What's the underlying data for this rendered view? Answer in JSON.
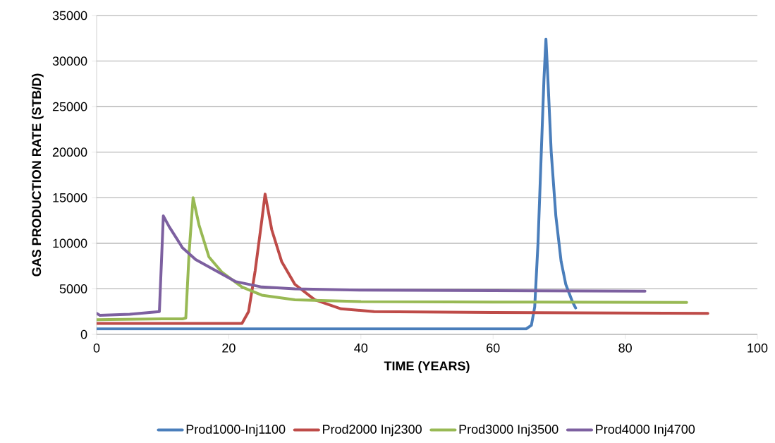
{
  "chart_data": {
    "type": "line",
    "xlabel": "TIME (YEARS)",
    "ylabel": "GAS PRODUCTION RATE (STB/D)",
    "xlim": [
      0,
      100
    ],
    "xticks": [
      0,
      20,
      40,
      60,
      80,
      100
    ],
    "ylim": [
      0,
      35000
    ],
    "yticks": [
      0,
      5000,
      10000,
      15000,
      20000,
      25000,
      30000,
      35000
    ],
    "grid": "y",
    "legend": "bottom",
    "marker": "none",
    "line_style": "solid",
    "series": [
      {
        "name": "Prod1000-Inj1100",
        "color": "#4a7ebb",
        "x": [
          0,
          65,
          65.8,
          66.3,
          66.8,
          67.3,
          67.7,
          68,
          68.3,
          68.8,
          69.5,
          70.3,
          71,
          72,
          72.5
        ],
        "values": [
          600,
          600,
          1000,
          3000,
          10000,
          20000,
          28000,
          32400,
          28000,
          20000,
          13000,
          8000,
          5500,
          3600,
          2900
        ]
      },
      {
        "name": "Prod2000 Inj2300",
        "color": "#be4b48",
        "x": [
          0,
          22,
          23,
          24,
          25,
          25.5,
          26.5,
          28,
          30,
          33,
          37,
          42,
          60,
          92.5
        ],
        "values": [
          1200,
          1200,
          2500,
          7000,
          12500,
          15400,
          11500,
          8000,
          5500,
          3800,
          2800,
          2500,
          2400,
          2300
        ]
      },
      {
        "name": "Prod3000 Inj3500",
        "color": "#98b954",
        "x": [
          0,
          10,
          13,
          13.5,
          14,
          14.6,
          15.5,
          17,
          19,
          22,
          25,
          30,
          40,
          60,
          89.3
        ],
        "values": [
          1600,
          1700,
          1700,
          1800,
          9000,
          15000,
          12000,
          8500,
          6800,
          5200,
          4300,
          3800,
          3600,
          3550,
          3500
        ]
      },
      {
        "name": "Prod4000 Inj4700",
        "color": "#7d60a0",
        "x": [
          0,
          0.5,
          5,
          9.5,
          10.1,
          11,
          13,
          15,
          18,
          21,
          25,
          30,
          40,
          60,
          83
        ],
        "values": [
          2300,
          2100,
          2200,
          2500,
          13000,
          11800,
          9500,
          8200,
          7000,
          5800,
          5200,
          5000,
          4850,
          4800,
          4750
        ]
      }
    ]
  }
}
